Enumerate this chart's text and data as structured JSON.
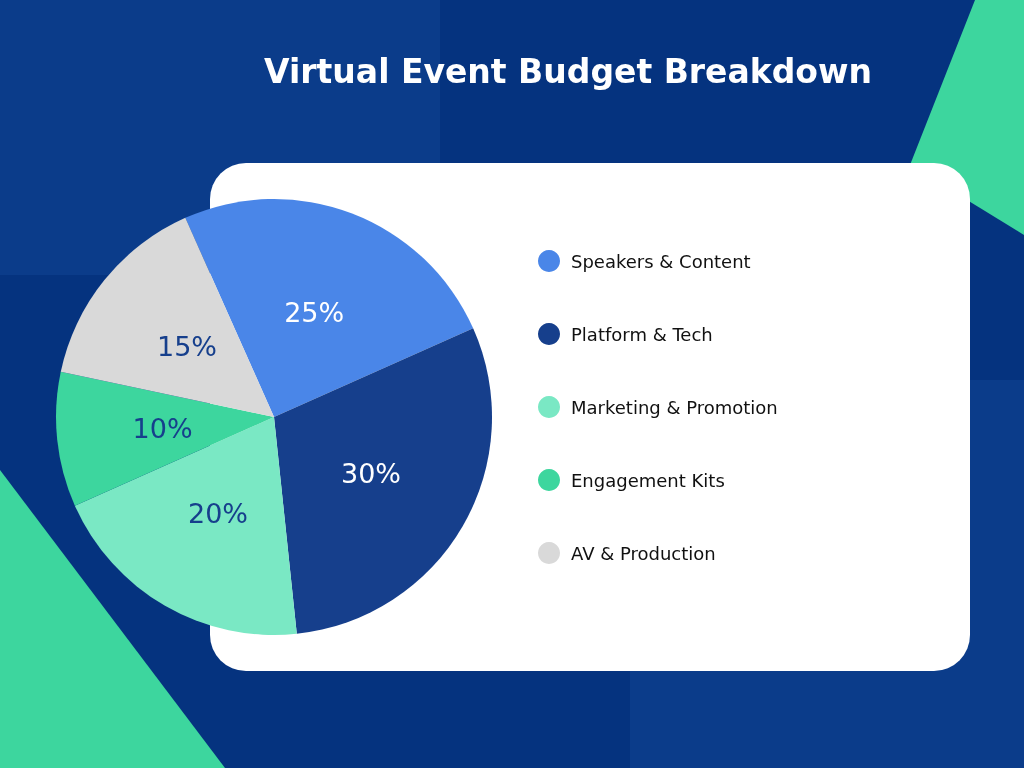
{
  "chart_data": {
    "type": "pie",
    "title": "Virtual Event Budget Breakdown",
    "categories": [
      "Speakers & Content",
      "Platform & Tech",
      "Marketing & Promotion",
      "Engagement Kits",
      "AV & Production"
    ],
    "values": [
      25,
      30,
      20,
      10,
      15
    ],
    "value_labels": [
      "25%",
      "30%",
      "20%",
      "10%",
      "15%"
    ],
    "colors": [
      "#4a86e8",
      "#163f8c",
      "#7ae8c4",
      "#3dd69e",
      "#d9d9d9"
    ],
    "legend": "right"
  }
}
